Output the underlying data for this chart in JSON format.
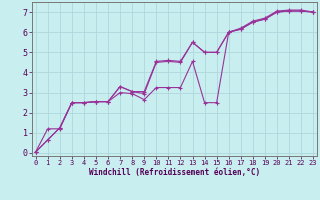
{
  "bg_color": "#c8eef0",
  "grid_color": "#b0d8dc",
  "line_color": "#993399",
  "xlim": [
    -0.3,
    23.3
  ],
  "ylim": [
    -0.15,
    7.5
  ],
  "xticks": [
    0,
    1,
    2,
    3,
    4,
    5,
    6,
    7,
    8,
    9,
    10,
    11,
    12,
    13,
    14,
    15,
    16,
    17,
    18,
    19,
    20,
    21,
    22,
    23
  ],
  "yticks": [
    0,
    1,
    2,
    3,
    4,
    5,
    6,
    7
  ],
  "xlabel": "Windchill (Refroidissement éolien,°C)",
  "line1_x": [
    0,
    1,
    2,
    3,
    4,
    5,
    6,
    7,
    8,
    9,
    10,
    11,
    12,
    13,
    14,
    15,
    16,
    17,
    18,
    19,
    20,
    21,
    22,
    23
  ],
  "line1_y": [
    0.05,
    0.65,
    1.25,
    2.5,
    2.5,
    2.55,
    2.55,
    3.3,
    3.05,
    2.95,
    4.5,
    4.55,
    4.5,
    5.5,
    5.0,
    5.0,
    6.0,
    6.15,
    6.5,
    6.65,
    7.0,
    7.05,
    7.05,
    7.0
  ],
  "line2_x": [
    0,
    1,
    2,
    3,
    4,
    5,
    6,
    7,
    8,
    9,
    10,
    11,
    12,
    13,
    14,
    15,
    16,
    17,
    18,
    19,
    20,
    21,
    22,
    23
  ],
  "line2_y": [
    0.05,
    1.2,
    1.2,
    2.5,
    2.5,
    2.55,
    2.55,
    3.3,
    3.05,
    3.05,
    4.55,
    4.6,
    4.55,
    5.5,
    5.0,
    5.0,
    6.0,
    6.2,
    6.55,
    6.7,
    7.05,
    7.1,
    7.1,
    7.0
  ],
  "line3_x": [
    0,
    1,
    2,
    3,
    4,
    5,
    6,
    7,
    8,
    9,
    10,
    11,
    12,
    13,
    14,
    15,
    16,
    17,
    18,
    19,
    20,
    21,
    22,
    23
  ],
  "line3_y": [
    0.05,
    0.65,
    1.25,
    2.5,
    2.5,
    2.55,
    2.55,
    3.0,
    2.95,
    2.65,
    3.25,
    3.25,
    3.25,
    4.55,
    2.5,
    2.5,
    6.0,
    6.15,
    6.5,
    6.65,
    7.0,
    7.05,
    7.05,
    7.0
  ]
}
